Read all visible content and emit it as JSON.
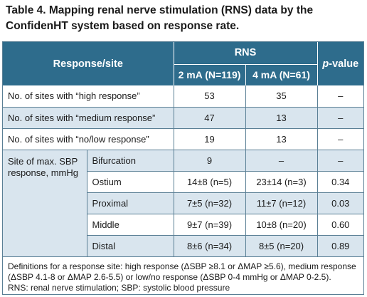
{
  "title": "Table 4. Mapping renal nerve stimulation (RNS) data by the ConfidenHT system based on response rate.",
  "header": {
    "response_site": "Response/site",
    "rns": "RNS",
    "p_value_p": "p",
    "p_value_rest": "-value",
    "col_2ma": "2 mA (N=119)",
    "col_4ma": "4 mA (N=61)"
  },
  "rows": [
    {
      "label": "No. of sites with “high response”",
      "ma2": "53",
      "ma4": "35",
      "p": "–"
    },
    {
      "label": "No. of sites with “medium response”",
      "ma2": "47",
      "ma4": "13",
      "p": "–"
    },
    {
      "label": "No. of sites with “no/low response”",
      "ma2": "19",
      "ma4": "13",
      "p": "–"
    }
  ],
  "sbp_group_label": "Site of max. SBP response, mmHg",
  "sbp_rows": [
    {
      "site": "Bifurcation",
      "ma2": "9",
      "ma4": "–",
      "p": "–"
    },
    {
      "site": "Ostium",
      "ma2": "14±8 (n=5)",
      "ma4": "23±14 (n=3)",
      "p": "0.34"
    },
    {
      "site": "Proximal",
      "ma2": "7±5 (n=32)",
      "ma4": "11±7 (n=12)",
      "p": "0.03"
    },
    {
      "site": "Middle",
      "ma2": "9±7 (n=39)",
      "ma4": "10±8 (n=20)",
      "p": "0.60"
    },
    {
      "site": "Distal",
      "ma2": "8±6 (n=34)",
      "ma4": "8±5 (n=20)",
      "p": "0.89"
    }
  ],
  "footnote": {
    "definitions": "Definitions for a response site: high response (ΔSBP ≥8.1 or ΔMAP ≥5.6), medium response (ΔSBP 4.1-8 or ΔMAP 2.6-5.5) or low/no response (ΔSBP 0-4 mmHg or ΔMAP 0-2.5).",
    "abbreviations": "RNS: renal nerve stimulation; SBP: systolic blood pressure"
  },
  "colors": {
    "header_bg": "#2e6c8c",
    "shade_bg": "#d9e5ee",
    "border": "#5a7f95"
  }
}
